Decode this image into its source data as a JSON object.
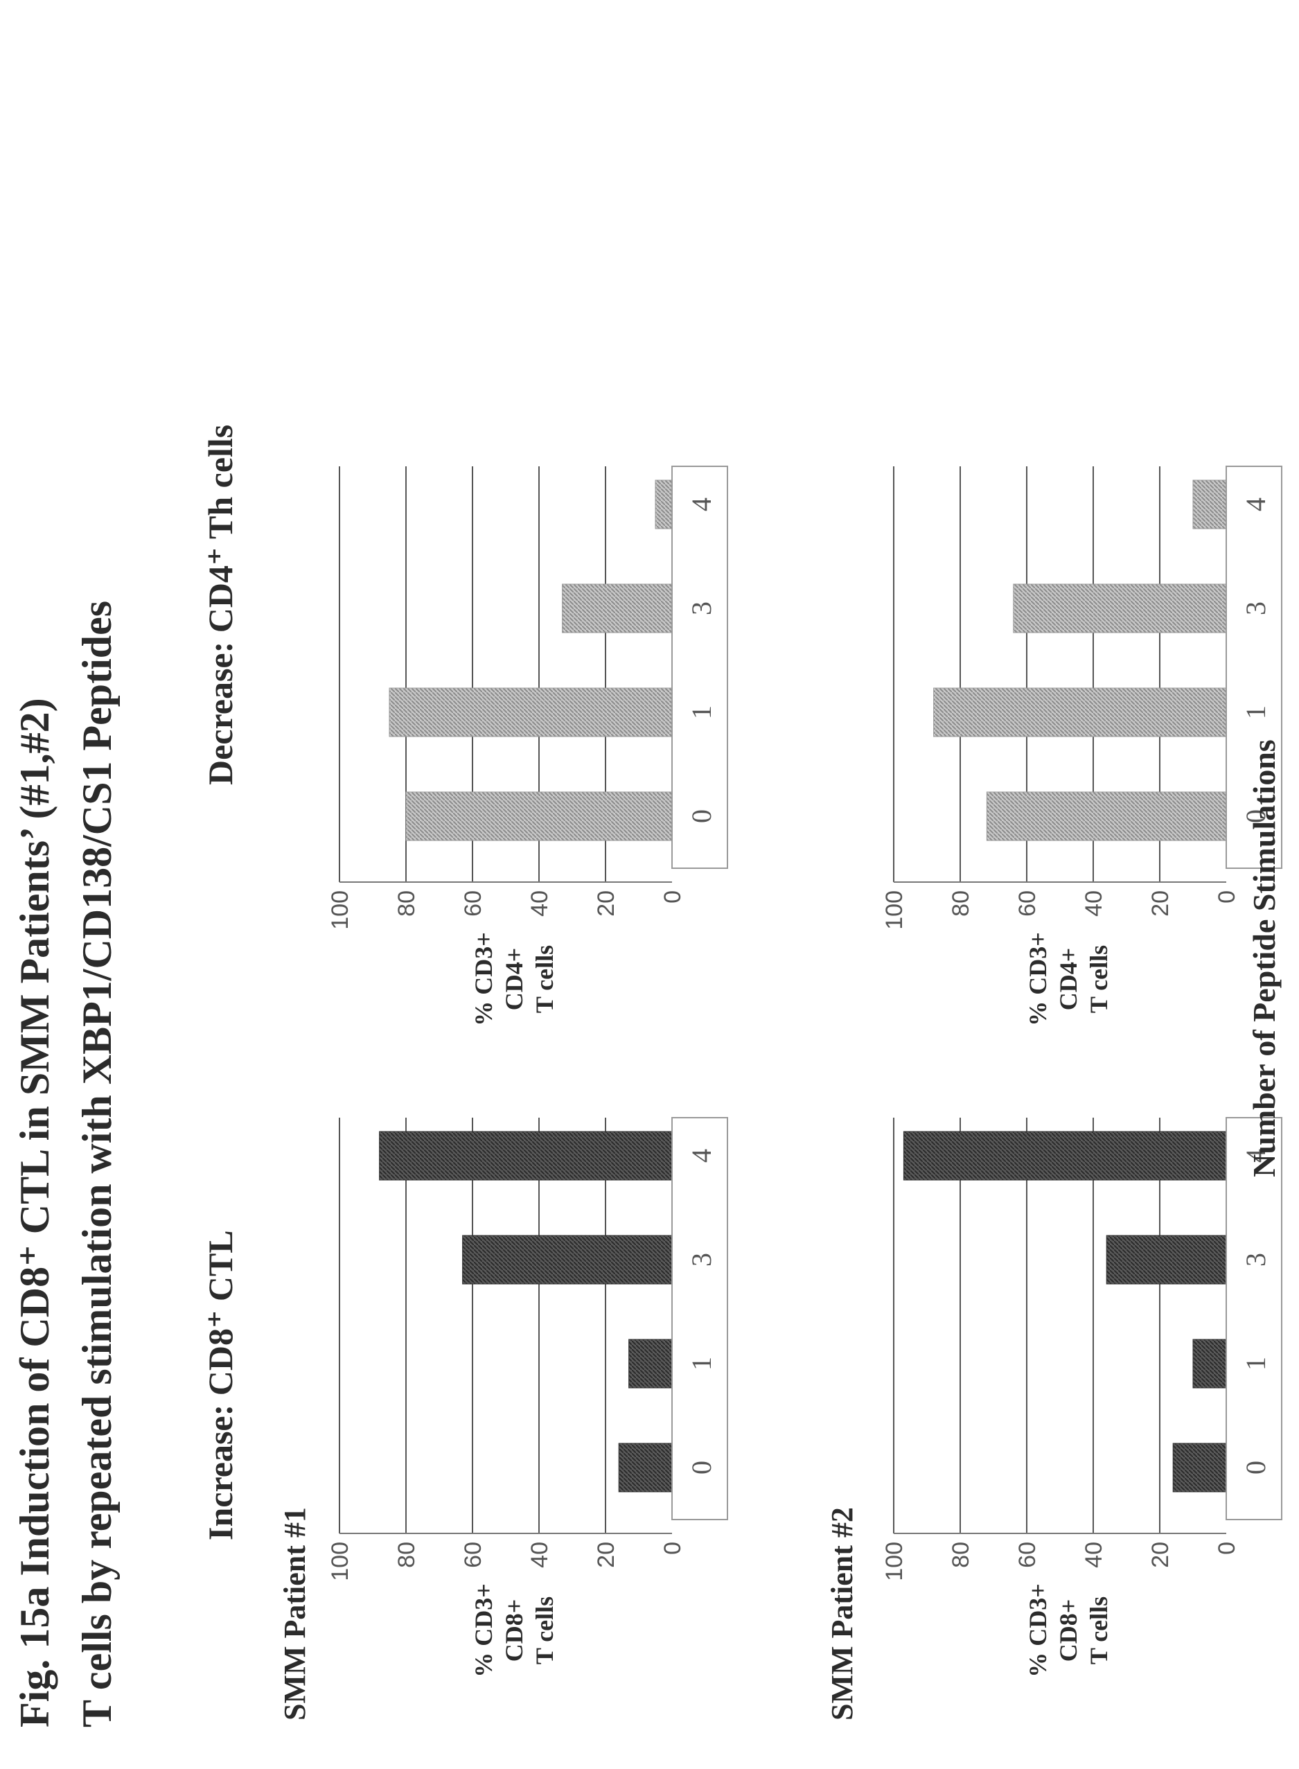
{
  "figure": {
    "title_line1": "Fig. 15a Induction of CD8⁺ CTL in SMM Patients’ (#1,#2)",
    "title_line2": "T cells by repeated stimulation with XBP1/CD138/CS1 Peptides",
    "left_heading": "Increase: CD8⁺ CTL",
    "right_heading": "Decrease: CD4⁺ Th cells",
    "shared_xlabel": "Number of Peptide Stimulations",
    "patient1_label": "SMM Patient #1",
    "patient2_label": "SMM Patient #2"
  },
  "colors": {
    "cd8_bar": "#4a4a4a",
    "cd4_bar": "#b8b8b8"
  },
  "chart_data": [
    {
      "id": "cd8-patient1",
      "type": "bar",
      "categories": [
        "0",
        "1",
        "3",
        "4"
      ],
      "values": [
        16,
        13,
        63,
        88
      ],
      "ylabel": [
        "% CD3+",
        "CD8+",
        "T cells"
      ],
      "ylim": [
        0,
        100
      ],
      "yticks": [
        "0",
        "20",
        "40",
        "60",
        "80",
        "100"
      ],
      "grid": true
    },
    {
      "id": "cd8-patient2",
      "type": "bar",
      "categories": [
        "0",
        "1",
        "3",
        "4"
      ],
      "values": [
        16,
        10,
        36,
        97
      ],
      "ylabel": [
        "% CD3+",
        "CD8+",
        "T cells"
      ],
      "ylim": [
        0,
        100
      ],
      "yticks": [
        "0",
        "20",
        "40",
        "60",
        "80",
        "100"
      ],
      "grid": true
    },
    {
      "id": "cd4-patient1",
      "type": "bar",
      "categories": [
        "0",
        "1",
        "3",
        "4"
      ],
      "values": [
        80,
        85,
        33,
        5
      ],
      "ylabel": [
        "% CD3+",
        "CD4+",
        "T cells"
      ],
      "ylim": [
        0,
        100
      ],
      "yticks": [
        "0",
        "20",
        "40",
        "60",
        "80",
        "100"
      ],
      "grid": true
    },
    {
      "id": "cd4-patient2",
      "type": "bar",
      "categories": [
        "0",
        "1",
        "3",
        "4"
      ],
      "values": [
        72,
        88,
        64,
        10
      ],
      "ylabel": [
        "% CD3+",
        "CD4+",
        "T cells"
      ],
      "ylim": [
        0,
        100
      ],
      "yticks": [
        "0",
        "20",
        "40",
        "60",
        "80",
        "100"
      ],
      "grid": true
    }
  ]
}
